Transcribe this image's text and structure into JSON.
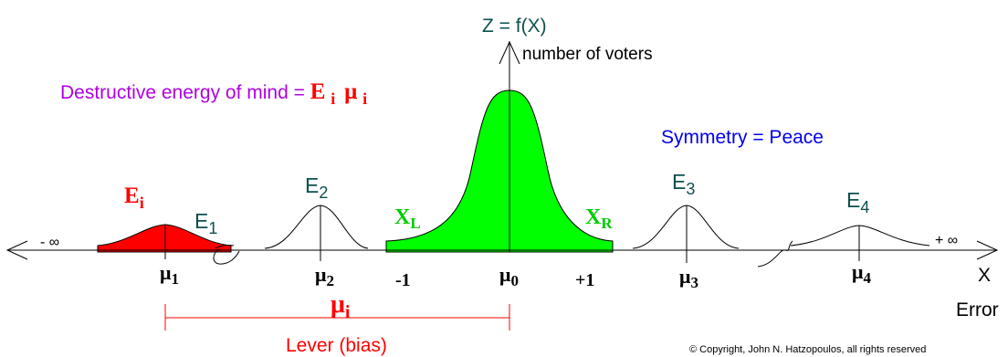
{
  "axes": {
    "z_label": "Z = f(X)",
    "z_sublabel": "number of voters",
    "x_label": "X",
    "x_sublabel": "Error",
    "neg_infinity": "- ∞",
    "pos_infinity": "+ ∞"
  },
  "headline": {
    "prefix": "Destructive energy of mind = ",
    "energy_letter": "E",
    "energy_sub": "i",
    "mu_letter": "μ",
    "mu_sub": "i"
  },
  "symmetry_note": "Symmetry = Peace",
  "curves": {
    "e_i": {
      "letter": "E",
      "sub": "i"
    },
    "e1": {
      "letter": "E",
      "sub": "1"
    },
    "e2": {
      "letter": "E",
      "sub": "2"
    },
    "e3": {
      "letter": "E",
      "sub": "3"
    },
    "e4": {
      "letter": "E",
      "sub": "4"
    },
    "x_l": {
      "letter": "X",
      "sub": "L"
    },
    "x_r": {
      "letter": "X",
      "sub": "R"
    }
  },
  "ticks": {
    "mu1": {
      "letter": "μ",
      "sub": "1"
    },
    "mu2": {
      "letter": "μ",
      "sub": "2"
    },
    "mu0": {
      "letter": "μ",
      "sub": "0"
    },
    "mu3": {
      "letter": "μ",
      "sub": "3"
    },
    "mu4": {
      "letter": "μ",
      "sub": "4"
    },
    "minus_one": "-1",
    "plus_one": "+1"
  },
  "lever": {
    "mu_letter": "μ",
    "mu_sub": "i",
    "caption": "Lever (bias)"
  },
  "copyright": "© Copyright, John N. Hatzopoulos, all rights reserved",
  "colors": {
    "red": "#ff0000",
    "green": "#00ff00",
    "purple": "#b000e0",
    "blue": "#0000ee",
    "teal": "#0f4f4f",
    "black": "#000000"
  }
}
